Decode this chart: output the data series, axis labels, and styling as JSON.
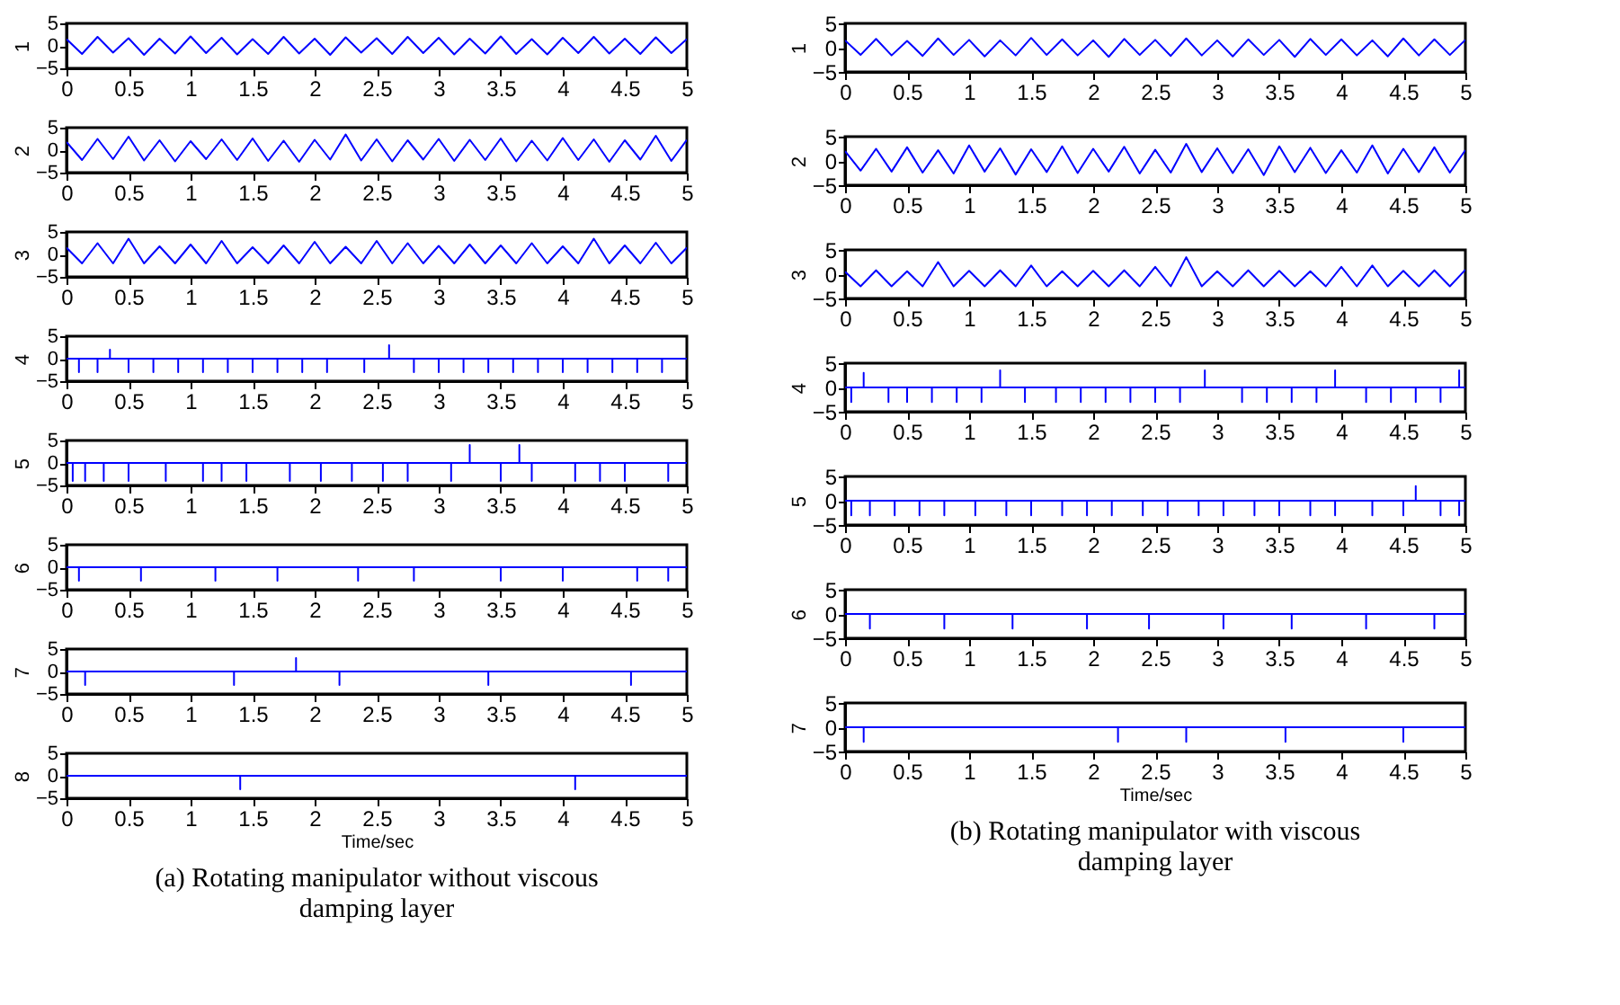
{
  "chart_data": [
    {
      "type": "line",
      "ylabel": "1",
      "xlim": [
        0,
        5
      ],
      "ylim": [
        -5,
        5
      ],
      "xticks": [
        0,
        0.5,
        1,
        1.5,
        2,
        2.5,
        3,
        3.5,
        4,
        4.5,
        5
      ],
      "yticks": [
        -5,
        0,
        5
      ],
      "x": [
        0,
        0.125,
        0.25,
        0.375,
        0.5,
        0.625,
        0.75,
        0.875,
        1,
        1.125,
        1.25,
        1.375,
        1.5,
        1.625,
        1.75,
        1.875,
        2,
        2.125,
        2.25,
        2.375,
        2.5,
        2.625,
        2.75,
        2.875,
        3,
        3.125,
        3.25,
        3.375,
        3.5,
        3.625,
        3.75,
        3.875,
        4,
        4.125,
        4.25,
        4.375,
        4.5,
        4.625,
        4.75,
        4.875,
        5
      ],
      "series": [
        {
          "color": "#0000ff",
          "values": [
            1.5,
            -1.8,
            2,
            -1.5,
            1.7,
            -2,
            1.6,
            -1.7,
            2.1,
            -1.6,
            1.8,
            -1.9,
            1.5,
            -1.8,
            2,
            -1.7,
            1.6,
            -2,
            1.9,
            -1.5,
            1.7,
            -1.8,
            2,
            -1.6,
            1.8,
            -1.9,
            1.6,
            -1.7,
            2.1,
            -1.8,
            1.5,
            -1.9,
            1.8,
            -1.6,
            2,
            -1.7,
            1.6,
            -1.8,
            1.9,
            -1.6,
            1.5
          ]
        }
      ]
    },
    {
      "type": "line",
      "ylabel": "2",
      "xlim": [
        0,
        5
      ],
      "ylim": [
        -5,
        5
      ],
      "xticks": [
        0,
        0.5,
        1,
        1.5,
        2,
        2.5,
        3,
        3.5,
        4,
        4.5,
        5
      ],
      "yticks": [
        -5,
        0,
        5
      ],
      "x": [
        0,
        0.125,
        0.25,
        0.375,
        0.5,
        0.625,
        0.75,
        0.875,
        1,
        1.125,
        1.25,
        1.375,
        1.5,
        1.625,
        1.75,
        1.875,
        2,
        2.125,
        2.25,
        2.375,
        2.5,
        2.625,
        2.75,
        2.875,
        3,
        3.125,
        3.25,
        3.375,
        3.5,
        3.625,
        3.75,
        3.875,
        4,
        4.125,
        4.25,
        4.375,
        4.5,
        4.625,
        4.75,
        4.875,
        5
      ],
      "series": [
        {
          "color": "#0000ff",
          "values": [
            1.8,
            -2.2,
            2.5,
            -2,
            3,
            -2.3,
            2.2,
            -2.5,
            2,
            -2,
            2.4,
            -2.2,
            2.6,
            -2.4,
            2.1,
            -2.6,
            2.3,
            -2.1,
            3.5,
            -2.3,
            2.4,
            -2.5,
            2.2,
            -2.1,
            2.5,
            -2.4,
            2.3,
            -2.2,
            2.6,
            -2.5,
            2.1,
            -2.3,
            2.7,
            -2.2,
            2.4,
            -2.6,
            2.2,
            -2.1,
            3.2,
            -2.4,
            2.3
          ]
        }
      ]
    },
    {
      "type": "line",
      "ylabel": "3",
      "xlim": [
        0,
        5
      ],
      "ylim": [
        -5,
        5
      ],
      "xticks": [
        0,
        0.5,
        1,
        1.5,
        2,
        2.5,
        3,
        3.5,
        4,
        4.5,
        5
      ],
      "yticks": [
        -5,
        0,
        5
      ],
      "x": [
        0,
        0.125,
        0.25,
        0.375,
        0.5,
        0.625,
        0.75,
        0.875,
        1,
        1.125,
        1.25,
        1.375,
        1.5,
        1.625,
        1.75,
        1.875,
        2,
        2.125,
        2.25,
        2.375,
        2.5,
        2.625,
        2.75,
        2.875,
        3,
        3.125,
        3.25,
        3.375,
        3.5,
        3.625,
        3.75,
        3.875,
        4,
        4.125,
        4.25,
        4.375,
        4.5,
        4.625,
        4.75,
        4.875,
        5
      ],
      "series": [
        {
          "color": "#0000ff",
          "values": [
            1.5,
            -2,
            2.5,
            -2,
            3.5,
            -2,
            1.8,
            -2,
            2.2,
            -2,
            3,
            -2,
            1.6,
            -2,
            2,
            -2,
            2.8,
            -2,
            1.7,
            -2,
            3,
            -2,
            2.5,
            -2,
            1.9,
            -2,
            2.2,
            -2,
            2,
            -2,
            2.5,
            -2,
            1.8,
            -2,
            3.5,
            -2,
            2,
            -2,
            2.6,
            -2,
            1.5
          ]
        }
      ]
    },
    {
      "type": "line",
      "ylabel": "4",
      "xlim": [
        0,
        5
      ],
      "ylim": [
        -5,
        5
      ],
      "xticks": [
        0,
        0.5,
        1,
        1.5,
        2,
        2.5,
        3,
        3.5,
        4,
        4.5,
        5
      ],
      "yticks": [
        -5,
        0,
        5
      ],
      "x": [
        0,
        0.1,
        0.1,
        0.1,
        0.25,
        0.25,
        0.25,
        0.35,
        0.35,
        0.35,
        0.5,
        0.5,
        0.5,
        0.7,
        0.7,
        0.7,
        0.9,
        0.9,
        0.9,
        1.1,
        1.1,
        1.1,
        1.3,
        1.3,
        1.3,
        1.5,
        1.5,
        1.5,
        1.7,
        1.7,
        1.7,
        1.9,
        1.9,
        1.9,
        2.1,
        2.1,
        2.1,
        2.4,
        2.4,
        2.4,
        2.6,
        2.6,
        2.6,
        2.8,
        2.8,
        2.8,
        3,
        3,
        3,
        3.2,
        3.2,
        3.2,
        3.4,
        3.4,
        3.4,
        3.6,
        3.6,
        3.6,
        3.8,
        3.8,
        3.8,
        4,
        4,
        4,
        4.2,
        4.2,
        4.2,
        4.4,
        4.4,
        4.4,
        4.6,
        4.6,
        4.6,
        4.8,
        4.8,
        4.8,
        5
      ],
      "series": [
        {
          "color": "#0000ff",
          "values": [
            0,
            0,
            -3,
            0,
            0,
            -3,
            0,
            0,
            2,
            0,
            0,
            -3,
            0,
            0,
            -3,
            0,
            0,
            -3,
            0,
            0,
            -3,
            0,
            0,
            -3,
            0,
            0,
            -3,
            0,
            0,
            -3,
            0,
            0,
            -3,
            0,
            0,
            -3,
            0,
            0,
            -3,
            0,
            0,
            3,
            0,
            0,
            -3,
            0,
            0,
            -3,
            0,
            0,
            -3,
            0,
            0,
            -3,
            0,
            0,
            -3,
            0,
            0,
            -3,
            0,
            0,
            -3,
            0,
            0,
            -3,
            0,
            0,
            -3,
            0,
            0,
            -3,
            0,
            0,
            -3,
            0,
            0
          ]
        }
      ]
    },
    {
      "type": "line",
      "ylabel": "5",
      "xlim": [
        0,
        5
      ],
      "ylim": [
        -5,
        5
      ],
      "xticks": [
        0,
        0.5,
        1,
        1.5,
        2,
        2.5,
        3,
        3.5,
        4,
        4.5,
        5
      ],
      "yticks": [
        -5,
        0,
        5
      ],
      "x": [
        0,
        0.05,
        0.05,
        0.05,
        0.15,
        0.15,
        0.15,
        0.3,
        0.3,
        0.3,
        0.5,
        0.5,
        0.5,
        0.8,
        0.8,
        0.8,
        1.1,
        1.1,
        1.1,
        1.25,
        1.25,
        1.25,
        1.45,
        1.45,
        1.45,
        1.8,
        1.8,
        1.8,
        2.05,
        2.05,
        2.05,
        2.3,
        2.3,
        2.3,
        2.55,
        2.55,
        2.55,
        2.75,
        2.75,
        2.75,
        3.1,
        3.1,
        3.1,
        3.25,
        3.25,
        3.25,
        3.5,
        3.5,
        3.5,
        3.65,
        3.65,
        3.65,
        3.75,
        3.75,
        3.75,
        4.1,
        4.1,
        4.1,
        4.3,
        4.3,
        4.3,
        4.5,
        4.5,
        4.5,
        4.85,
        4.85,
        4.85,
        5
      ],
      "series": [
        {
          "color": "#0000ff",
          "values": [
            0,
            0,
            -4,
            0,
            0,
            -4,
            0,
            0,
            -4,
            0,
            0,
            -4,
            0,
            0,
            -4,
            0,
            0,
            -4,
            0,
            0,
            -4,
            0,
            0,
            -4,
            0,
            0,
            -4,
            0,
            0,
            -4,
            0,
            0,
            -4,
            0,
            0,
            -4,
            0,
            0,
            -4,
            0,
            0,
            -4,
            0,
            0,
            4,
            0,
            0,
            -4,
            0,
            0,
            4,
            0,
            0,
            -4,
            0,
            0,
            -4,
            0,
            0,
            -4,
            0,
            0,
            -4,
            0,
            0,
            -4,
            0,
            0
          ]
        }
      ]
    },
    {
      "type": "line",
      "ylabel": "6",
      "xlim": [
        0,
        5
      ],
      "ylim": [
        -5,
        5
      ],
      "xticks": [
        0,
        0.5,
        1,
        1.5,
        2,
        2.5,
        3,
        3.5,
        4,
        4.5,
        5
      ],
      "yticks": [
        -5,
        0,
        5
      ],
      "x": [
        0,
        0.1,
        0.1,
        0.1,
        0.6,
        0.6,
        0.6,
        1.2,
        1.2,
        1.2,
        1.7,
        1.7,
        1.7,
        2.35,
        2.35,
        2.35,
        2.8,
        2.8,
        2.8,
        3.5,
        3.5,
        3.5,
        4,
        4,
        4,
        4.6,
        4.6,
        4.6,
        4.85,
        4.85,
        4.85,
        5
      ],
      "series": [
        {
          "color": "#0000ff",
          "values": [
            0,
            0,
            -3,
            0,
            0,
            -3,
            0,
            0,
            -3,
            0,
            0,
            -3,
            0,
            0,
            -3,
            0,
            0,
            -3,
            0,
            0,
            -3,
            0,
            0,
            -3,
            0,
            0,
            -3,
            0,
            0,
            -3,
            0,
            0
          ]
        }
      ]
    },
    {
      "type": "line",
      "ylabel": "7",
      "xlim": [
        0,
        5
      ],
      "ylim": [
        -5,
        5
      ],
      "xticks": [
        0,
        0.5,
        1,
        1.5,
        2,
        2.5,
        3,
        3.5,
        4,
        4.5,
        5
      ],
      "yticks": [
        -5,
        0,
        5
      ],
      "x": [
        0,
        0.15,
        0.15,
        0.15,
        1.35,
        1.35,
        1.35,
        1.85,
        1.85,
        1.85,
        2.2,
        2.2,
        2.2,
        3.4,
        3.4,
        3.4,
        4.55,
        4.55,
        4.55,
        5
      ],
      "series": [
        {
          "color": "#0000ff",
          "values": [
            0,
            0,
            -3,
            0,
            0,
            -3,
            0,
            0,
            3,
            0,
            0,
            -3,
            0,
            0,
            -3,
            0,
            0,
            -3,
            0,
            0
          ]
        }
      ]
    },
    {
      "type": "line",
      "ylabel": "8",
      "xlabel": "Time/sec",
      "annotations": [
        "(a) Rotating manipulator without viscous damping layer"
      ],
      "xlim": [
        0,
        5
      ],
      "ylim": [
        -5,
        5
      ],
      "xticks": [
        0,
        0.5,
        1,
        1.5,
        2,
        2.5,
        3,
        3.5,
        4,
        4.5,
        5
      ],
      "yticks": [
        -5,
        0,
        5
      ],
      "x": [
        0,
        1.4,
        1.4,
        1.4,
        4.1,
        4.1,
        4.1,
        5
      ],
      "series": [
        {
          "color": "#0000ff",
          "values": [
            0,
            0,
            -3,
            0,
            0,
            -3,
            0,
            0
          ]
        }
      ]
    },
    {
      "type": "line",
      "ylabel": "1",
      "xlim": [
        0,
        5
      ],
      "ylim": [
        -5,
        5
      ],
      "xticks": [
        0,
        0.5,
        1,
        1.5,
        2,
        2.5,
        3,
        3.5,
        4,
        4.5,
        5
      ],
      "yticks": [
        -5,
        0,
        5
      ],
      "x": [
        0,
        0.125,
        0.25,
        0.375,
        0.5,
        0.625,
        0.75,
        0.875,
        1,
        1.125,
        1.25,
        1.375,
        1.5,
        1.625,
        1.75,
        1.875,
        2,
        2.125,
        2.25,
        2.375,
        2.5,
        2.625,
        2.75,
        2.875,
        3,
        3.125,
        3.25,
        3.375,
        3.5,
        3.625,
        3.75,
        3.875,
        4,
        4.125,
        4.25,
        4.375,
        4.5,
        4.625,
        4.75,
        4.875,
        5
      ],
      "series": [
        {
          "color": "#0000ff",
          "values": [
            1.5,
            -1.5,
            1.8,
            -1.6,
            1.4,
            -1.7,
            1.9,
            -1.5,
            1.6,
            -1.8,
            1.5,
            -1.6,
            2,
            -1.5,
            1.7,
            -1.6,
            1.5,
            -1.9,
            1.8,
            -1.5,
            1.6,
            -1.7,
            1.9,
            -1.6,
            1.5,
            -1.8,
            1.7,
            -1.5,
            1.6,
            -1.9,
            1.8,
            -1.5,
            1.7,
            -1.6,
            1.5,
            -1.8,
            1.9,
            -1.6,
            1.7,
            -1.5,
            1.6
          ]
        }
      ]
    },
    {
      "type": "line",
      "ylabel": "2",
      "xlim": [
        0,
        5
      ],
      "ylim": [
        -5,
        5
      ],
      "xticks": [
        0,
        0.5,
        1,
        1.5,
        2,
        2.5,
        3,
        3.5,
        4,
        4.5,
        5
      ],
      "yticks": [
        -5,
        0,
        5
      ],
      "x": [
        0,
        0.125,
        0.25,
        0.375,
        0.5,
        0.625,
        0.75,
        0.875,
        1,
        1.125,
        1.25,
        1.375,
        1.5,
        1.625,
        1.75,
        1.875,
        2,
        2.125,
        2.25,
        2.375,
        2.5,
        2.625,
        2.75,
        2.875,
        3,
        3.125,
        3.25,
        3.375,
        3.5,
        3.625,
        3.75,
        3.875,
        4,
        4.125,
        4.25,
        4.375,
        4.5,
        4.625,
        4.75,
        4.875,
        5
      ],
      "series": [
        {
          "color": "#0000ff",
          "values": [
            2,
            -2,
            2.5,
            -2.2,
            2.8,
            -2.4,
            2.2,
            -2.6,
            3.2,
            -2.2,
            2.6,
            -2.8,
            2.4,
            -2.3,
            3,
            -2.5,
            2.5,
            -2.2,
            2.9,
            -2.6,
            2.3,
            -2.4,
            3.5,
            -2.3,
            2.6,
            -2.5,
            2.4,
            -2.9,
            3,
            -2.3,
            2.7,
            -2.5,
            2.2,
            -2.4,
            3.2,
            -2.6,
            2.5,
            -2.3,
            2.8,
            -2.4,
            2.2
          ]
        }
      ]
    },
    {
      "type": "line",
      "ylabel": "3",
      "xlim": [
        0,
        5
      ],
      "ylim": [
        -5,
        5
      ],
      "xticks": [
        0,
        0.5,
        1,
        1.5,
        2,
        2.5,
        3,
        3.5,
        4,
        4.5,
        5
      ],
      "yticks": [
        -5,
        0,
        5
      ],
      "x": [
        0,
        0.125,
        0.25,
        0.375,
        0.5,
        0.625,
        0.75,
        0.875,
        1,
        1.125,
        1.25,
        1.375,
        1.5,
        1.625,
        1.75,
        1.875,
        2,
        2.125,
        2.25,
        2.375,
        2.5,
        2.625,
        2.75,
        2.875,
        3,
        3.125,
        3.25,
        3.375,
        3.5,
        3.625,
        3.75,
        3.875,
        4,
        4.125,
        4.25,
        4.375,
        4.5,
        4.625,
        4.75,
        4.875,
        5
      ],
      "series": [
        {
          "color": "#0000ff",
          "values": [
            0.5,
            -2.5,
            0.8,
            -2.5,
            0.6,
            -2.5,
            2.5,
            -2.5,
            0.7,
            -2.5,
            0.8,
            -2.5,
            1.8,
            -2.5,
            0.6,
            -2.5,
            0.7,
            -2.5,
            0.8,
            -2.5,
            1.5,
            -2.5,
            3.5,
            -2.5,
            0.6,
            -2.5,
            0.8,
            -2.5,
            0.7,
            -2.5,
            0.6,
            -2.5,
            1.5,
            -2.5,
            1.8,
            -2.5,
            0.7,
            -2.5,
            0.8,
            -2.5,
            0.9
          ]
        }
      ]
    },
    {
      "type": "line",
      "ylabel": "4",
      "xlim": [
        0,
        5
      ],
      "ylim": [
        -5,
        5
      ],
      "xticks": [
        0,
        0.5,
        1,
        1.5,
        2,
        2.5,
        3,
        3.5,
        4,
        4.5,
        5
      ],
      "yticks": [
        -5,
        0,
        5
      ],
      "x": [
        0,
        0.05,
        0.05,
        0.05,
        0.15,
        0.15,
        0.15,
        0.35,
        0.35,
        0.35,
        0.5,
        0.5,
        0.5,
        0.7,
        0.7,
        0.7,
        0.9,
        0.9,
        0.9,
        1.1,
        1.1,
        1.1,
        1.25,
        1.25,
        1.25,
        1.45,
        1.45,
        1.45,
        1.7,
        1.7,
        1.7,
        1.9,
        1.9,
        1.9,
        2.1,
        2.1,
        2.1,
        2.3,
        2.3,
        2.3,
        2.5,
        2.5,
        2.5,
        2.7,
        2.7,
        2.7,
        2.9,
        2.9,
        2.9,
        3.2,
        3.2,
        3.2,
        3.4,
        3.4,
        3.4,
        3.6,
        3.6,
        3.6,
        3.8,
        3.8,
        3.8,
        3.95,
        3.95,
        3.95,
        4.2,
        4.2,
        4.2,
        4.4,
        4.4,
        4.4,
        4.6,
        4.6,
        4.6,
        4.8,
        4.8,
        4.8,
        4.95,
        4.95,
        4.95,
        5
      ],
      "series": [
        {
          "color": "#0000ff",
          "values": [
            0,
            0,
            -3,
            0,
            0,
            3,
            0,
            0,
            -3,
            0,
            0,
            -3,
            0,
            0,
            -3,
            0,
            0,
            -3,
            0,
            0,
            -3,
            0,
            0,
            3.5,
            0,
            0,
            -3,
            0,
            0,
            -3,
            0,
            0,
            -3,
            0,
            0,
            -3,
            0,
            0,
            -3,
            0,
            0,
            -3,
            0,
            0,
            -3,
            0,
            0,
            3.5,
            0,
            0,
            -3,
            0,
            0,
            -3,
            0,
            0,
            -3,
            0,
            0,
            -3,
            0,
            0,
            3.5,
            0,
            0,
            -3,
            0,
            0,
            -3,
            0,
            0,
            -3,
            0,
            0,
            -3,
            0,
            0,
            3.5,
            0,
            0
          ]
        }
      ]
    },
    {
      "type": "line",
      "ylabel": "5",
      "xlim": [
        0,
        5
      ],
      "ylim": [
        -5,
        5
      ],
      "xticks": [
        0,
        0.5,
        1,
        1.5,
        2,
        2.5,
        3,
        3.5,
        4,
        4.5,
        5
      ],
      "yticks": [
        -5,
        0,
        5
      ],
      "x": [
        0,
        0.05,
        0.05,
        0.05,
        0.2,
        0.2,
        0.2,
        0.4,
        0.4,
        0.4,
        0.6,
        0.6,
        0.6,
        0.8,
        0.8,
        0.8,
        1.05,
        1.05,
        1.05,
        1.3,
        1.3,
        1.3,
        1.5,
        1.5,
        1.5,
        1.75,
        1.75,
        1.75,
        1.95,
        1.95,
        1.95,
        2.15,
        2.15,
        2.15,
        2.4,
        2.4,
        2.4,
        2.6,
        2.6,
        2.6,
        2.85,
        2.85,
        2.85,
        3.05,
        3.05,
        3.05,
        3.3,
        3.3,
        3.3,
        3.5,
        3.5,
        3.5,
        3.75,
        3.75,
        3.75,
        3.95,
        3.95,
        3.95,
        4.25,
        4.25,
        4.25,
        4.5,
        4.5,
        4.5,
        4.6,
        4.6,
        4.6,
        4.8,
        4.8,
        4.8,
        4.95,
        4.95,
        4.95,
        5
      ],
      "series": [
        {
          "color": "#0000ff",
          "values": [
            0,
            0,
            -3,
            0,
            0,
            -3,
            0,
            0,
            -3,
            0,
            0,
            -3,
            0,
            0,
            -3,
            0,
            0,
            -3,
            0,
            0,
            -3,
            0,
            0,
            -3,
            0,
            0,
            -3,
            0,
            0,
            -3,
            0,
            0,
            -3,
            0,
            0,
            -3,
            0,
            0,
            -3,
            0,
            0,
            -3,
            0,
            0,
            -3,
            0,
            0,
            -3,
            0,
            0,
            -3,
            0,
            0,
            -3,
            0,
            0,
            -3,
            0,
            0,
            -3,
            0,
            0,
            -3,
            0,
            0,
            3,
            0,
            0,
            -3,
            0,
            0,
            -3,
            0,
            0
          ]
        }
      ]
    },
    {
      "type": "line",
      "ylabel": "6",
      "xlim": [
        0,
        5
      ],
      "ylim": [
        -5,
        5
      ],
      "xticks": [
        0,
        0.5,
        1,
        1.5,
        2,
        2.5,
        3,
        3.5,
        4,
        4.5,
        5
      ],
      "yticks": [
        -5,
        0,
        5
      ],
      "x": [
        0,
        0.2,
        0.2,
        0.2,
        0.8,
        0.8,
        0.8,
        1.35,
        1.35,
        1.35,
        1.95,
        1.95,
        1.95,
        2.45,
        2.45,
        2.45,
        3.05,
        3.05,
        3.05,
        3.6,
        3.6,
        3.6,
        4.2,
        4.2,
        4.2,
        4.75,
        4.75,
        4.75,
        5
      ],
      "series": [
        {
          "color": "#0000ff",
          "values": [
            0,
            0,
            -3,
            0,
            0,
            -3,
            0,
            0,
            -3,
            0,
            0,
            -3,
            0,
            0,
            -3,
            0,
            0,
            -3,
            0,
            0,
            -3,
            0,
            0,
            -3,
            0,
            0,
            -3,
            0,
            0
          ]
        }
      ]
    },
    {
      "type": "line",
      "ylabel": "7",
      "xlabel": "Time/sec",
      "annotations": [
        "(b) Rotating manipulator with viscous damping layer"
      ],
      "xlim": [
        0,
        5
      ],
      "ylim": [
        -5,
        5
      ],
      "xticks": [
        0,
        0.5,
        1,
        1.5,
        2,
        2.5,
        3,
        3.5,
        4,
        4.5,
        5
      ],
      "yticks": [
        -5,
        0,
        5
      ],
      "x": [
        0,
        0.15,
        0.15,
        0.15,
        2.2,
        2.2,
        2.2,
        2.75,
        2.75,
        2.75,
        3.55,
        3.55,
        3.55,
        4.5,
        4.5,
        4.5,
        5
      ],
      "series": [
        {
          "color": "#0000ff",
          "values": [
            0,
            0,
            -3,
            0,
            0,
            -3,
            0,
            0,
            -3,
            0,
            0,
            -3,
            0,
            0,
            -3,
            0,
            0
          ]
        }
      ]
    }
  ]
}
